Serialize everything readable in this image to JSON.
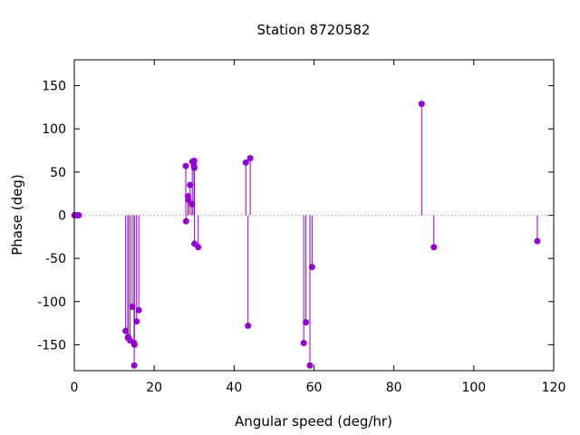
{
  "chart_data": {
    "type": "scatter",
    "style": "impulses with points",
    "title": "Station 8720582",
    "xlabel": "Angular speed (deg/hr)",
    "ylabel": "Phase (deg)",
    "xlim": [
      0,
      120
    ],
    "ylim": [
      -180,
      180
    ],
    "xticks": [
      0,
      20,
      40,
      60,
      80,
      100,
      120
    ],
    "yticks": [
      -150,
      -100,
      -50,
      0,
      50,
      100,
      150
    ],
    "color": "#9400d3",
    "zero_line": true,
    "x": [
      0.04,
      0.08,
      0.54,
      1.1,
      12.85,
      13.4,
      13.47,
      13.94,
      14.5,
      14.96,
      15.0,
      15.04,
      15.59,
      16.14,
      27.9,
      27.97,
      28.44,
      28.51,
      28.98,
      29.46,
      29.53,
      29.96,
      30.0,
      30.04,
      30.08,
      31.02,
      42.93,
      43.48,
      44.03,
      57.42,
      57.97,
      58.98,
      59.5,
      86.95,
      90.0,
      115.9
    ],
    "y": [
      0,
      0,
      0,
      0,
      -134,
      -142,
      -141,
      -145,
      -106,
      -148,
      -174,
      -150,
      -123,
      -110,
      57,
      -7,
      22,
      18,
      35,
      13,
      62,
      57,
      63,
      55,
      -33,
      -37,
      61,
      -128,
      66,
      -148,
      -124,
      -174,
      -60,
      129,
      -37,
      -30
    ]
  }
}
